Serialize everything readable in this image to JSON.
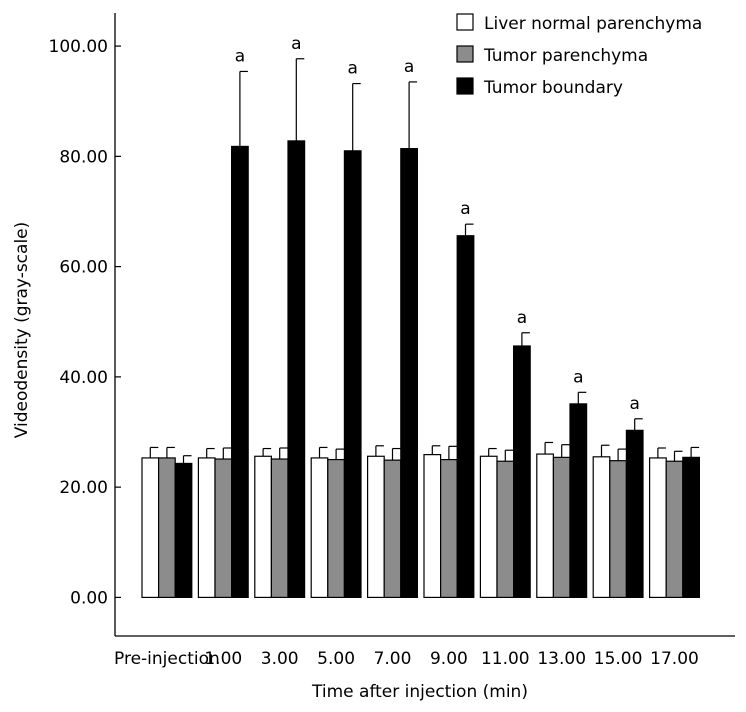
{
  "chart_data": {
    "type": "bar",
    "title": "",
    "xlabel": "Time after injection (min)",
    "ylabel": "Videodensity (gray-scale)",
    "ylim": [
      -7,
      106
    ],
    "yticks": [
      "0.00",
      "20.00",
      "40.00",
      "60.00",
      "80.00",
      "100.00"
    ],
    "categories": [
      "Pre-injection",
      "1.00",
      "3.00",
      "5.00",
      "7.00",
      "9.00",
      "11.00",
      "13.00",
      "15.00",
      "17.00"
    ],
    "significance_marker": "a",
    "significant": [
      false,
      true,
      true,
      true,
      true,
      true,
      true,
      true,
      true,
      false
    ],
    "legend_position": "top-right",
    "series": [
      {
        "name": "Liver normal parenchyma",
        "color": "#ffffff",
        "values": [
          25.3,
          25.3,
          25.6,
          25.3,
          25.6,
          25.9,
          25.6,
          26.0,
          25.5,
          25.3
        ],
        "errors": [
          1.9,
          1.7,
          1.4,
          1.9,
          1.9,
          1.6,
          1.4,
          2.1,
          2.1,
          1.8
        ]
      },
      {
        "name": "Tumor parenchyma",
        "color": "#8c8c8c",
        "values": [
          25.3,
          25.1,
          25.1,
          25.0,
          24.9,
          25.0,
          24.7,
          25.4,
          24.8,
          24.7
        ],
        "errors": [
          1.9,
          2.0,
          2.0,
          1.9,
          2.1,
          2.4,
          2.0,
          2.3,
          2.1,
          1.8
        ]
      },
      {
        "name": "Tumor boundary",
        "color": "#000000",
        "values": [
          24.3,
          81.8,
          82.8,
          81.0,
          81.4,
          65.6,
          45.6,
          35.1,
          30.3,
          25.4
        ],
        "errors": [
          1.4,
          13.6,
          14.9,
          12.2,
          12.1,
          2.1,
          2.4,
          2.1,
          2.1,
          1.8
        ]
      }
    ]
  }
}
